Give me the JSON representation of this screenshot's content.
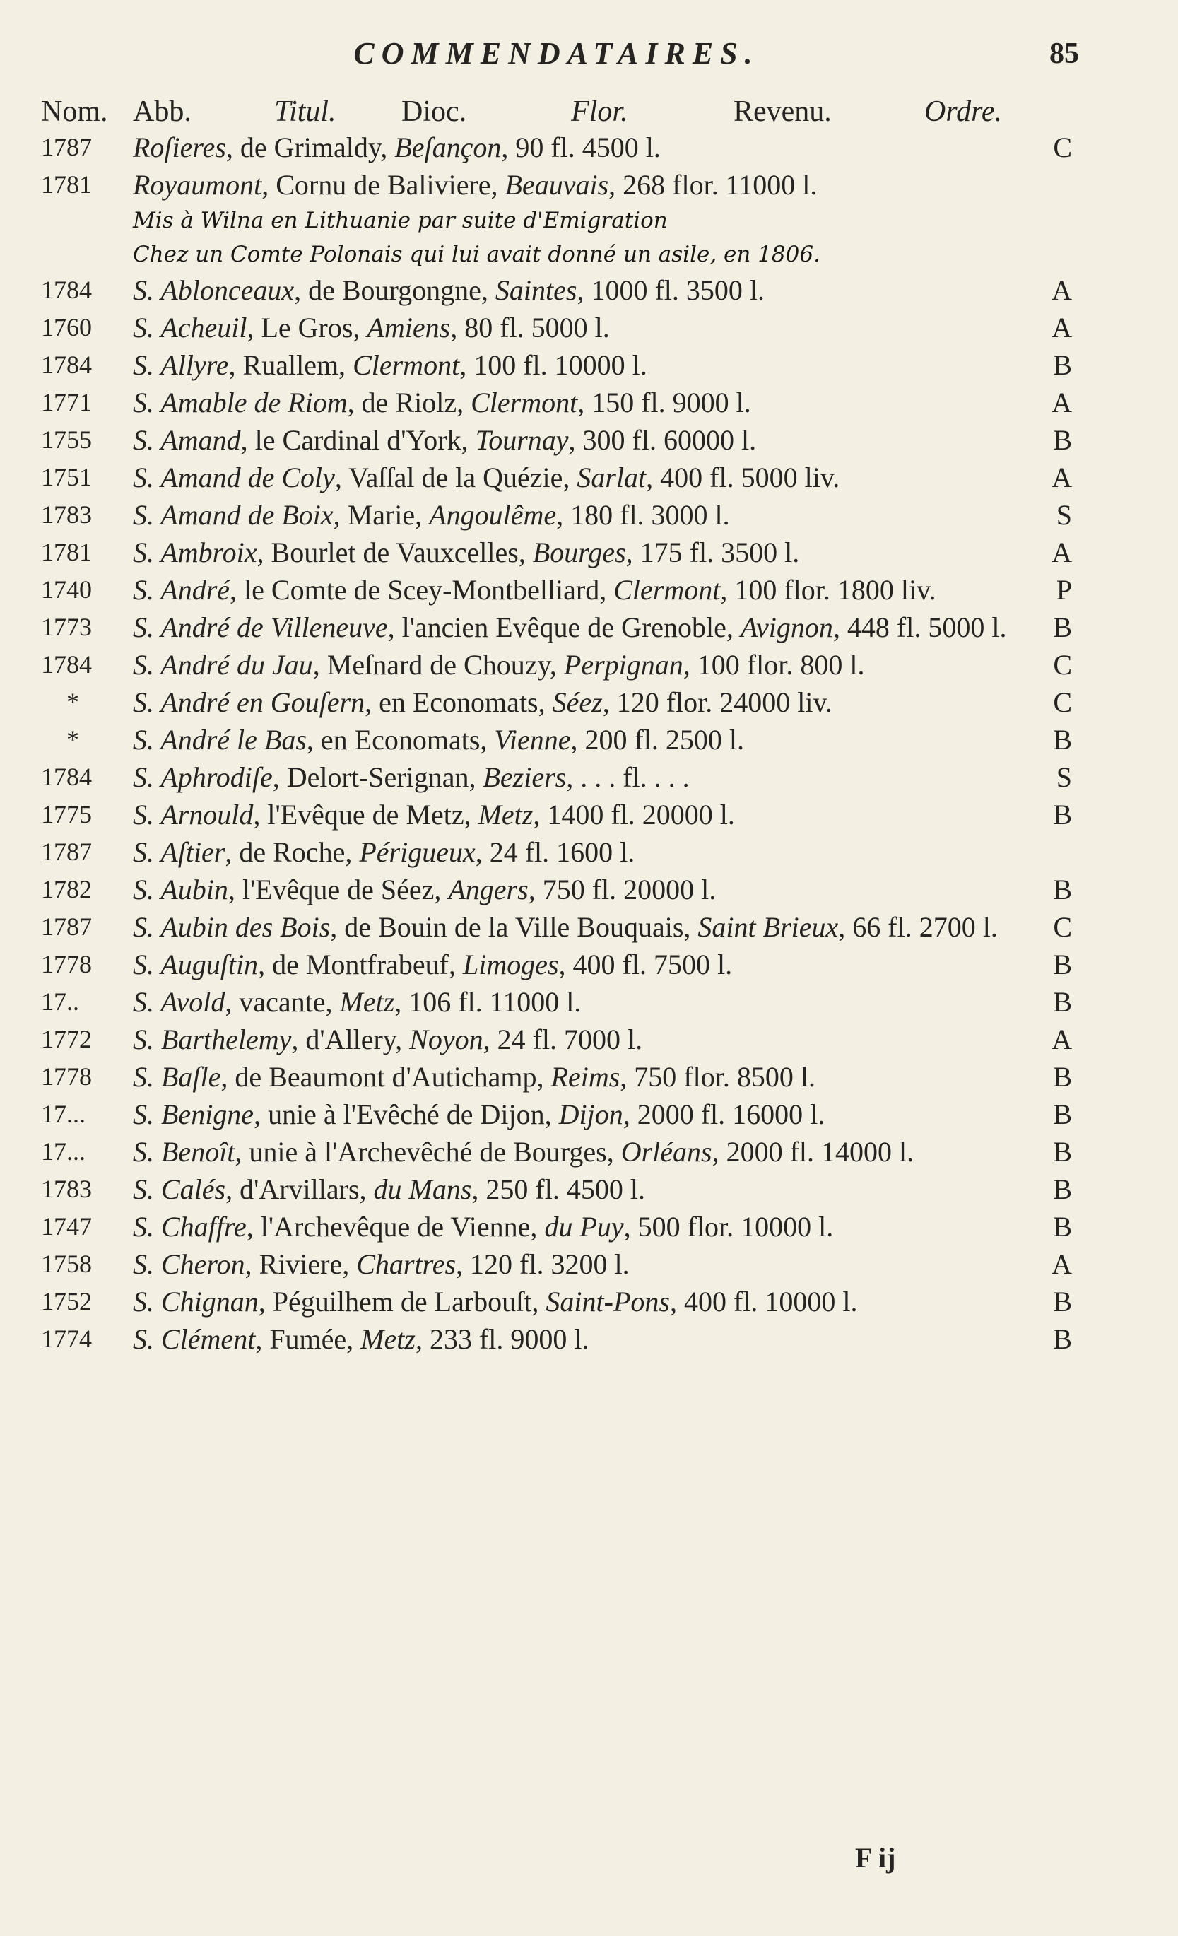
{
  "header": {
    "title": "COMMENDATAIRES.",
    "page": "85"
  },
  "columns": [
    {
      "t": "Nom.",
      "i": false
    },
    {
      "t": "Abb.",
      "i": false
    },
    {
      "t": "Titul.",
      "i": true
    },
    {
      "t": "Dioc.",
      "i": false
    },
    {
      "t": "Flor.",
      "i": true
    },
    {
      "t": "Revenu.",
      "i": false
    },
    {
      "t": "Ordre.",
      "i": true
    }
  ],
  "entries": [
    {
      "year": "1787",
      "text": [
        {
          "t": "Roſieres",
          "i": true
        },
        {
          "t": ", de Grimaldy, ",
          "i": false
        },
        {
          "t": "Beſançon",
          "i": true
        },
        {
          "t": ", 90 fl. 4500 l.",
          "i": false
        }
      ],
      "order": "C"
    },
    {
      "year": "1781",
      "text": [
        {
          "t": "Royaumont",
          "i": true
        },
        {
          "t": ", Cornu de Baliviere, ",
          "i": false
        },
        {
          "t": "Beauvais",
          "i": true
        },
        {
          "t": ", 268 flor. 11000 l.",
          "i": false
        }
      ]
    },
    {
      "year": "1784",
      "text": [
        {
          "t": "S. Ablonceaux",
          "i": true
        },
        {
          "t": ", de Bourgongne, ",
          "i": false
        },
        {
          "t": "Saintes",
          "i": true
        },
        {
          "t": ", 1000 fl. 3500 l.",
          "i": false
        }
      ],
      "order": "A"
    },
    {
      "year": "1760",
      "text": [
        {
          "t": "S. Acheuil",
          "i": true
        },
        {
          "t": ", Le Gros, ",
          "i": false
        },
        {
          "t": "Amiens",
          "i": true
        },
        {
          "t": ", 80 fl. 5000 l.",
          "i": false
        }
      ],
      "order": "A"
    },
    {
      "year": "1784",
      "text": [
        {
          "t": "S. Allyre",
          "i": true
        },
        {
          "t": ", Ruallem, ",
          "i": false
        },
        {
          "t": "Clermont",
          "i": true
        },
        {
          "t": ", 100 fl. 10000 l.",
          "i": false
        }
      ],
      "order": "B"
    },
    {
      "year": "1771",
      "text": [
        {
          "t": "S. Amable de Riom",
          "i": true
        },
        {
          "t": ", de Riolz, ",
          "i": false
        },
        {
          "t": "Clermont",
          "i": true
        },
        {
          "t": ", 150 fl. 9000 l.",
          "i": false
        }
      ],
      "order": "A"
    },
    {
      "year": "1755",
      "text": [
        {
          "t": "S. Amand",
          "i": true
        },
        {
          "t": ", le Cardinal d'York, ",
          "i": false
        },
        {
          "t": "Tournay",
          "i": true
        },
        {
          "t": ", 300 fl. 60000 l.",
          "i": false
        }
      ],
      "order": "B"
    },
    {
      "year": "1751",
      "text": [
        {
          "t": "S. Amand de Coly",
          "i": true
        },
        {
          "t": ", Vaſſal de la Quézie, ",
          "i": false
        },
        {
          "t": "Sarlat",
          "i": true
        },
        {
          "t": ", 400 fl. 5000 liv.",
          "i": false
        }
      ],
      "order": "A"
    },
    {
      "year": "1783",
      "text": [
        {
          "t": "S. Amand de Boix",
          "i": true
        },
        {
          "t": ", Marie, ",
          "i": false
        },
        {
          "t": "Angoulême",
          "i": true
        },
        {
          "t": ", 180 fl. 3000 l.",
          "i": false
        }
      ],
      "order": "S"
    },
    {
      "year": "1781",
      "text": [
        {
          "t": "S. Ambroix",
          "i": true
        },
        {
          "t": ", Bourlet de Vauxcelles, ",
          "i": false
        },
        {
          "t": "Bourges",
          "i": true
        },
        {
          "t": ", 175 fl. 3500 l.",
          "i": false
        }
      ],
      "order": "A"
    },
    {
      "year": "1740",
      "text": [
        {
          "t": "S. André",
          "i": true
        },
        {
          "t": ", le Comte de Scey-Montbelliard, ",
          "i": false
        },
        {
          "t": "Clermont",
          "i": true
        },
        {
          "t": ", 100 flor. 1800 liv.",
          "i": false
        }
      ],
      "order": "P"
    },
    {
      "year": "1773",
      "text": [
        {
          "t": "S. André de Villeneuve",
          "i": true
        },
        {
          "t": ", l'ancien Evêque de Grenoble, ",
          "i": false
        },
        {
          "t": "Avignon",
          "i": true
        },
        {
          "t": ", 448 fl. 5000 l.",
          "i": false
        }
      ],
      "order": "B"
    },
    {
      "year": "1784",
      "text": [
        {
          "t": "S. André du Jau",
          "i": true
        },
        {
          "t": ", Meſnard de Chouzy, ",
          "i": false
        },
        {
          "t": "Perpignan",
          "i": true
        },
        {
          "t": ", 100 flor. 800 l.",
          "i": false
        }
      ],
      "order": "C"
    },
    {
      "year": "*",
      "text": [
        {
          "t": "S. André en Gouſern",
          "i": true
        },
        {
          "t": ", en Economats, ",
          "i": false
        },
        {
          "t": "Séez",
          "i": true
        },
        {
          "t": ", 120 flor. 24000 liv.",
          "i": false
        }
      ],
      "order": "C"
    },
    {
      "year": "*",
      "text": [
        {
          "t": "S. André le Bas",
          "i": true
        },
        {
          "t": ", en Economats, ",
          "i": false
        },
        {
          "t": "Vienne",
          "i": true
        },
        {
          "t": ", 200 fl. 2500 l.",
          "i": false
        }
      ],
      "order": "B"
    },
    {
      "year": "1784",
      "text": [
        {
          "t": "S. Aphrodiſe",
          "i": true
        },
        {
          "t": ", Delort-Serignan, ",
          "i": false
        },
        {
          "t": "Beziers",
          "i": true
        },
        {
          "t": ", . . . fl. . . .",
          "i": false
        }
      ],
      "order": "S"
    },
    {
      "year": "1775",
      "text": [
        {
          "t": "S. Arnould",
          "i": true
        },
        {
          "t": ", l'Evêque de Metz, ",
          "i": false
        },
        {
          "t": "Metz",
          "i": true
        },
        {
          "t": ", 1400 fl. 20000 l.",
          "i": false
        }
      ],
      "order": "B"
    },
    {
      "year": "1787",
      "text": [
        {
          "t": "S. Aſtier",
          "i": true
        },
        {
          "t": ", de Roche, ",
          "i": false
        },
        {
          "t": "Périgueux",
          "i": true
        },
        {
          "t": ", 24 fl. 1600 l.",
          "i": false
        }
      ]
    },
    {
      "year": "1782",
      "text": [
        {
          "t": "S. Aubin",
          "i": true
        },
        {
          "t": ", l'Evêque de Séez, ",
          "i": false
        },
        {
          "t": "Angers",
          "i": true
        },
        {
          "t": ", 750 fl. 20000 l.",
          "i": false
        }
      ],
      "order": "B"
    },
    {
      "year": "1787",
      "text": [
        {
          "t": "S. Aubin des Bois",
          "i": true
        },
        {
          "t": ", de Bouin de la Ville Bouquais, ",
          "i": false
        },
        {
          "t": "Saint Brieux",
          "i": true
        },
        {
          "t": ", 66 fl. 2700 l.",
          "i": false
        }
      ],
      "order": "C"
    },
    {
      "year": "1778",
      "text": [
        {
          "t": "S. Auguſtin",
          "i": true
        },
        {
          "t": ", de Montfrabeuf, ",
          "i": false
        },
        {
          "t": "Limoges",
          "i": true
        },
        {
          "t": ", 400 fl. 7500 l.",
          "i": false
        }
      ],
      "order": "B"
    },
    {
      "year": "17..",
      "text": [
        {
          "t": "S. Avold",
          "i": true
        },
        {
          "t": ", vacante, ",
          "i": false
        },
        {
          "t": "Metz",
          "i": true
        },
        {
          "t": ", 106 fl. 11000 l.",
          "i": false
        }
      ],
      "order": "B"
    },
    {
      "year": "1772",
      "text": [
        {
          "t": "S. Barthelemy",
          "i": true
        },
        {
          "t": ", d'Allery, ",
          "i": false
        },
        {
          "t": "Noyon",
          "i": true
        },
        {
          "t": ", 24 fl. 7000 l.",
          "i": false
        }
      ],
      "order": "A"
    },
    {
      "year": "1778",
      "text": [
        {
          "t": "S. Baſle",
          "i": true
        },
        {
          "t": ", de Beaumont d'Autichamp, ",
          "i": false
        },
        {
          "t": "Reims",
          "i": true
        },
        {
          "t": ", 750 flor. 8500 l.",
          "i": false
        }
      ],
      "order": "B"
    },
    {
      "year": "17...",
      "text": [
        {
          "t": "S. Benigne",
          "i": true
        },
        {
          "t": ", unie à l'Evêché de Dijon, ",
          "i": false
        },
        {
          "t": "Dijon",
          "i": true
        },
        {
          "t": ", 2000 fl. 16000 l.",
          "i": false
        }
      ],
      "order": "B"
    },
    {
      "year": "17...",
      "text": [
        {
          "t": "S. Benoît",
          "i": true
        },
        {
          "t": ", unie à l'Archevêché de Bourges, ",
          "i": false
        },
        {
          "t": "Orléans",
          "i": true
        },
        {
          "t": ", 2000 fl. 14000 l.",
          "i": false
        }
      ],
      "order": "B"
    },
    {
      "year": "1783",
      "text": [
        {
          "t": "S. Calés",
          "i": true
        },
        {
          "t": ", d'Arvillars, ",
          "i": false
        },
        {
          "t": "du Mans",
          "i": true
        },
        {
          "t": ", 250 fl. 4500 l.",
          "i": false
        }
      ],
      "order": "B"
    },
    {
      "year": "1747",
      "text": [
        {
          "t": "S. Chaffre",
          "i": true
        },
        {
          "t": ", l'Archevêque de Vienne, ",
          "i": false
        },
        {
          "t": "du Puy",
          "i": true
        },
        {
          "t": ", 500 flor. 10000 l.",
          "i": false
        }
      ],
      "order": "B"
    },
    {
      "year": "1758",
      "text": [
        {
          "t": "S. Cheron",
          "i": true
        },
        {
          "t": ", Riviere, ",
          "i": false
        },
        {
          "t": "Chartres",
          "i": true
        },
        {
          "t": ", 120 fl. 3200 l.",
          "i": false
        }
      ],
      "order": "A"
    },
    {
      "year": "1752",
      "text": [
        {
          "t": "S. Chignan",
          "i": true
        },
        {
          "t": ", Péguilhem de Larbouſt, ",
          "i": false
        },
        {
          "t": "Saint-Pons",
          "i": true
        },
        {
          "t": ", 400 fl. 10000 l.",
          "i": false
        }
      ],
      "order": "B"
    },
    {
      "year": "1774",
      "text": [
        {
          "t": "S. Clément",
          "i": true
        },
        {
          "t": ", Fumée, ",
          "i": false
        },
        {
          "t": "Metz",
          "i": true
        },
        {
          "t": ", 233 fl. 9000 l.",
          "i": false
        }
      ],
      "order": "B"
    }
  ],
  "annotation": {
    "after": 1,
    "lines": [
      "Mis à Wilna en Lithuanie par suite d'Emigration",
      "Chez un Comte Polonais qui lui avait donné un asile, en 1806."
    ]
  },
  "footer": "F ij"
}
